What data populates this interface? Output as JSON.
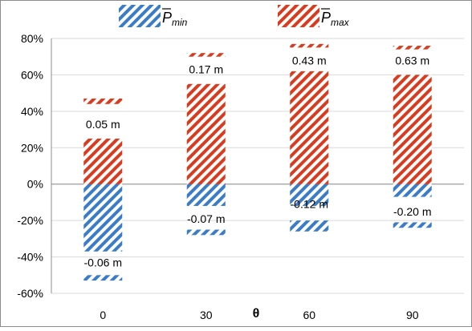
{
  "chart_data": {
    "type": "bar",
    "xlabel": "θ",
    "categories": [
      "0",
      "30",
      "60",
      "90"
    ],
    "ylim": [
      -0.6,
      0.8
    ],
    "yticks": [
      "80%",
      "60%",
      "40%",
      "20%",
      "0%",
      "-20%",
      "-40%",
      "-60%"
    ],
    "ytick_values": [
      0.8,
      0.6,
      0.4,
      0.2,
      0.0,
      -0.2,
      -0.4,
      -0.6
    ],
    "grid": true,
    "legend_position": "top",
    "series": [
      {
        "name": "P̄min",
        "legend_base": "P",
        "legend_sub": "min",
        "color": "#3a7cc8",
        "pattern": "hatched-diagonal",
        "bars": [
          {
            "upper": 0.0,
            "lower": -0.37
          },
          {
            "upper": 0.0,
            "lower": -0.12
          },
          {
            "upper": 0.0,
            "lower": -0.12
          },
          {
            "upper": 0.0,
            "lower": -0.07
          }
        ],
        "caps": [
          {
            "upper": -0.5,
            "lower": -0.53
          },
          {
            "upper": -0.25,
            "lower": -0.28
          },
          {
            "upper": -0.2,
            "lower": -0.26
          },
          {
            "upper": -0.21,
            "lower": -0.24
          }
        ],
        "labels": [
          "-0.06 m",
          "-0.07 m",
          "-0.12 m",
          "-0.20 m"
        ],
        "label_values": [
          -0.43,
          -0.19,
          -0.11,
          -0.15
        ]
      },
      {
        "name": "P̄max",
        "legend_base": "P",
        "legend_sub": "max",
        "color": "#d93b1f",
        "pattern": "hatched-diagonal",
        "bars": [
          {
            "lower": 0.0,
            "upper": 0.25
          },
          {
            "lower": 0.0,
            "upper": 0.55
          },
          {
            "lower": 0.0,
            "upper": 0.62
          },
          {
            "lower": 0.0,
            "upper": 0.6
          }
        ],
        "caps": [
          {
            "lower": 0.44,
            "upper": 0.47
          },
          {
            "lower": 0.7,
            "upper": 0.72
          },
          {
            "lower": 0.75,
            "upper": 0.77
          },
          {
            "lower": 0.74,
            "upper": 0.76
          }
        ],
        "labels": [
          "0.05 m",
          "0.17 m",
          "0.43 m",
          "0.63 m"
        ],
        "label_values": [
          0.33,
          0.63,
          0.68,
          0.68
        ]
      }
    ]
  }
}
